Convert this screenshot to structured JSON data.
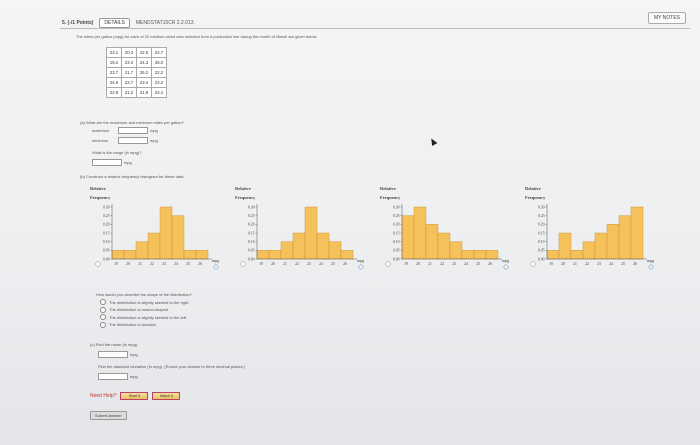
{
  "header": {
    "points": "5. (-/1 Points)",
    "details": "DETAILS",
    "code": "MENDSTAT15CR 2.2.013.",
    "my_notes": "MY NOTES"
  },
  "intro": "The miles per gallon (mpg) for each of 20 medium-sized cars selected from a production line during the month of March are given below.",
  "table": [
    [
      "23.1",
      "20.3",
      "22.6",
      "22.7"
    ],
    [
      "19.2",
      "23.4",
      "24.3",
      "26.0"
    ],
    [
      "23.7",
      "21.7",
      "25.2",
      "22.2"
    ],
    [
      "24.9",
      "23.7",
      "23.4",
      "23.2"
    ],
    [
      "22.9",
      "21.2",
      "21.9",
      "23.4"
    ]
  ],
  "part_a": {
    "question": "(a)  What are the maximum and minimum miles per gallon?",
    "max_label": "maximum",
    "min_label": "minimum",
    "unit": "mpg",
    "range_question": "What is the range (in mpg)?",
    "range_unit": "mpg"
  },
  "part_b": {
    "question": "(b)  Construct a relative frequency histogram for these data.",
    "shape_question": "How would you describe the shape of the distribution?",
    "options": [
      "The distribution is slightly skewed to the right.",
      "The distribution is mound-shaped.",
      "The distribution is slightly skewed to the left.",
      "The distribution is bimodal."
    ]
  },
  "part_c": {
    "question": "(c)  Find the mean (in mpg).",
    "mean_unit": "mpg",
    "sd_question": "Find the standard deviation (in mpg). (Round your answer to three decimal places.)",
    "sd_unit": "mpg"
  },
  "help": {
    "label": "Need Help?",
    "read_it": "Read It",
    "watch_it": "Watch It"
  },
  "submit": "Submit Answer",
  "chart_data": [
    {
      "type": "bar",
      "ylabel": "Relative Frequency",
      "xlabel": "mpg",
      "x": [
        19,
        20,
        21,
        22,
        23,
        24,
        25,
        26
      ],
      "ylim": [
        0,
        0.3
      ],
      "yticks": [
        0.0,
        0.05,
        0.1,
        0.15,
        0.2,
        0.25,
        0.3
      ],
      "values": [
        0.05,
        0.05,
        0.1,
        0.15,
        0.3,
        0.25,
        0.05,
        0.05
      ]
    },
    {
      "type": "bar",
      "ylabel": "Relative Frequency",
      "xlabel": "mpg",
      "x": [
        19,
        20,
        21,
        22,
        23,
        24,
        25,
        26
      ],
      "ylim": [
        0,
        0.3
      ],
      "yticks": [
        0.0,
        0.05,
        0.1,
        0.15,
        0.2,
        0.25,
        0.3
      ],
      "values": [
        0.05,
        0.05,
        0.1,
        0.15,
        0.3,
        0.15,
        0.1,
        0.05
      ]
    },
    {
      "type": "bar",
      "ylabel": "Relative Frequency",
      "xlabel": "mpg",
      "x": [
        19,
        20,
        21,
        22,
        23,
        24,
        25,
        26
      ],
      "ylim": [
        0,
        0.3
      ],
      "yticks": [
        0.0,
        0.05,
        0.1,
        0.15,
        0.2,
        0.25,
        0.3
      ],
      "values": [
        0.25,
        0.3,
        0.2,
        0.15,
        0.1,
        0.05,
        0.05,
        0.05
      ]
    },
    {
      "type": "bar",
      "ylabel": "Relative Frequency",
      "xlabel": "mpg",
      "x": [
        19,
        20,
        21,
        22,
        23,
        24,
        25,
        26
      ],
      "ylim": [
        0,
        0.3
      ],
      "yticks": [
        0.0,
        0.05,
        0.1,
        0.15,
        0.2,
        0.25,
        0.3
      ],
      "values": [
        0.05,
        0.15,
        0.05,
        0.1,
        0.15,
        0.2,
        0.25,
        0.3
      ]
    }
  ]
}
